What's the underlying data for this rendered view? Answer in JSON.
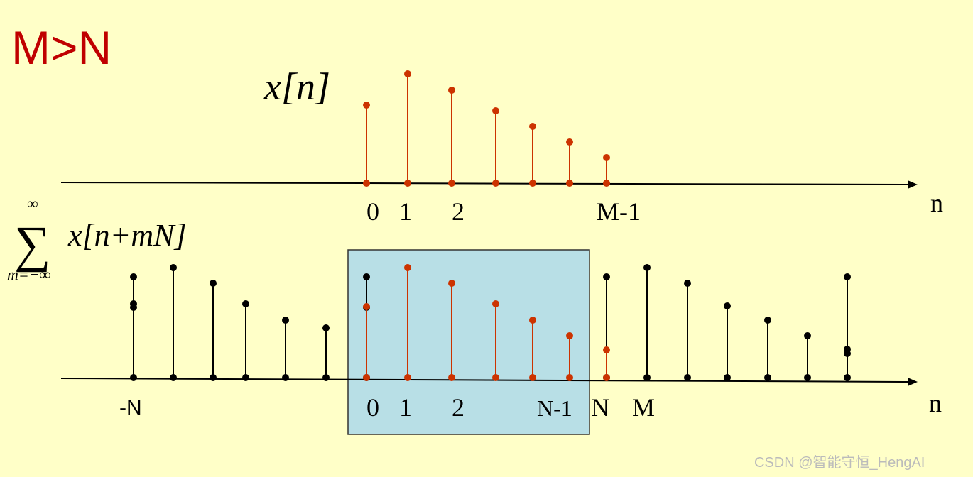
{
  "title": "M>N",
  "top": {
    "label": "x[n]",
    "ticks": [
      "0",
      "1",
      "2",
      "M-1"
    ],
    "axis": "n"
  },
  "bottom": {
    "sum_symbol": "∑",
    "upper": "∞",
    "lower": "m=−∞",
    "label": "x[n+mN]",
    "ticks": [
      "-N",
      "0",
      "1",
      "2",
      "N-1",
      "N",
      "M"
    ],
    "axis": "n"
  },
  "watermark": "CSDN @智能守恒_HengAI"
}
